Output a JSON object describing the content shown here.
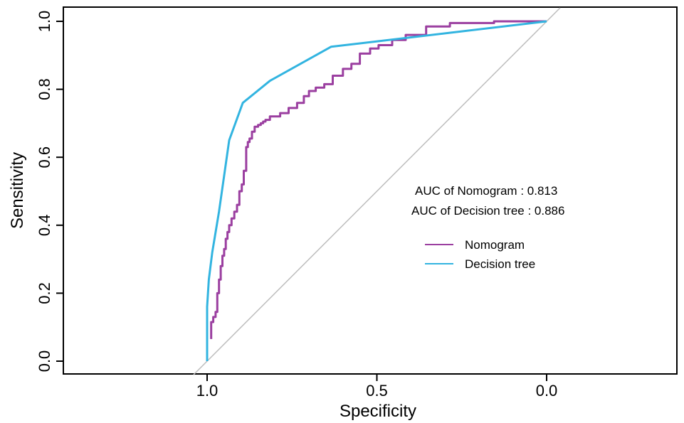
{
  "chart_data": {
    "type": "line",
    "xlabel": "Specificity",
    "ylabel": "Sensitivity",
    "x_reversed": true,
    "xlim": [
      1.4,
      -0.4
    ],
    "ylim": [
      0.0,
      1.0
    ],
    "xticks": [
      1.0,
      0.5,
      0.0
    ],
    "xtick_labels": [
      "1.0",
      "0.5",
      "0.0"
    ],
    "yticks": [
      0.0,
      0.2,
      0.4,
      0.6,
      0.8,
      1.0
    ],
    "ytick_labels": [
      "0.0",
      "0.2",
      "0.4",
      "0.6",
      "0.8",
      "1.0"
    ],
    "grid": false,
    "reference_line": {
      "from": [
        1.0,
        0.0
      ],
      "to": [
        0.0,
        1.0
      ],
      "color": "#bdbdbd"
    },
    "annotations": [
      "AUC of Nomogram : 0.813",
      "AUC of Decision tree : 0.886"
    ],
    "legend": {
      "position": "right-middle",
      "entries": [
        {
          "label": "Nomogram",
          "color": "#9b3fa0"
        },
        {
          "label": "Decision tree",
          "color": "#32b4e0"
        }
      ]
    },
    "series": [
      {
        "name": "Nomogram",
        "color": "#9b3fa0",
        "x": [
          0.988,
          0.988,
          0.982,
          0.982,
          0.975,
          0.975,
          0.97,
          0.97,
          0.965,
          0.965,
          0.96,
          0.96,
          0.955,
          0.955,
          0.95,
          0.95,
          0.945,
          0.945,
          0.94,
          0.94,
          0.935,
          0.935,
          0.928,
          0.928,
          0.92,
          0.92,
          0.912,
          0.912,
          0.905,
          0.905,
          0.898,
          0.898,
          0.892,
          0.892,
          0.885,
          0.885,
          0.88,
          0.88,
          0.875,
          0.875,
          0.868,
          0.868,
          0.86,
          0.86,
          0.85,
          0.85,
          0.842,
          0.842,
          0.835,
          0.835,
          0.828,
          0.828,
          0.815,
          0.815,
          0.785,
          0.785,
          0.76,
          0.76,
          0.735,
          0.735,
          0.715,
          0.715,
          0.7,
          0.7,
          0.68,
          0.68,
          0.655,
          0.655,
          0.63,
          0.63,
          0.6,
          0.6,
          0.575,
          0.575,
          0.55,
          0.55,
          0.52,
          0.52,
          0.495,
          0.495,
          0.455,
          0.455,
          0.415,
          0.415,
          0.355,
          0.355,
          0.285,
          0.285,
          0.155,
          0.155,
          0.0
        ],
        "y": [
          0.065,
          0.115,
          0.115,
          0.13,
          0.13,
          0.145,
          0.145,
          0.2,
          0.2,
          0.24,
          0.24,
          0.28,
          0.28,
          0.31,
          0.31,
          0.33,
          0.33,
          0.36,
          0.36,
          0.38,
          0.38,
          0.4,
          0.4,
          0.42,
          0.42,
          0.44,
          0.44,
          0.46,
          0.46,
          0.5,
          0.5,
          0.52,
          0.52,
          0.56,
          0.56,
          0.63,
          0.63,
          0.645,
          0.645,
          0.655,
          0.655,
          0.675,
          0.675,
          0.69,
          0.69,
          0.695,
          0.695,
          0.7,
          0.7,
          0.705,
          0.705,
          0.71,
          0.71,
          0.72,
          0.72,
          0.73,
          0.73,
          0.745,
          0.745,
          0.76,
          0.76,
          0.78,
          0.78,
          0.795,
          0.795,
          0.805,
          0.805,
          0.815,
          0.815,
          0.84,
          0.84,
          0.86,
          0.86,
          0.875,
          0.875,
          0.905,
          0.905,
          0.92,
          0.92,
          0.93,
          0.93,
          0.945,
          0.945,
          0.96,
          0.96,
          0.985,
          0.985,
          0.995,
          0.995,
          1.0,
          1.0
        ]
      },
      {
        "name": "Decision tree",
        "color": "#32b4e0",
        "x": [
          1.0,
          1.0,
          0.995,
          0.985,
          0.965,
          0.935,
          0.895,
          0.815,
          0.635,
          0.0
        ],
        "y": [
          0.0,
          0.16,
          0.24,
          0.32,
          0.44,
          0.65,
          0.76,
          0.825,
          0.925,
          1.0
        ]
      }
    ]
  }
}
